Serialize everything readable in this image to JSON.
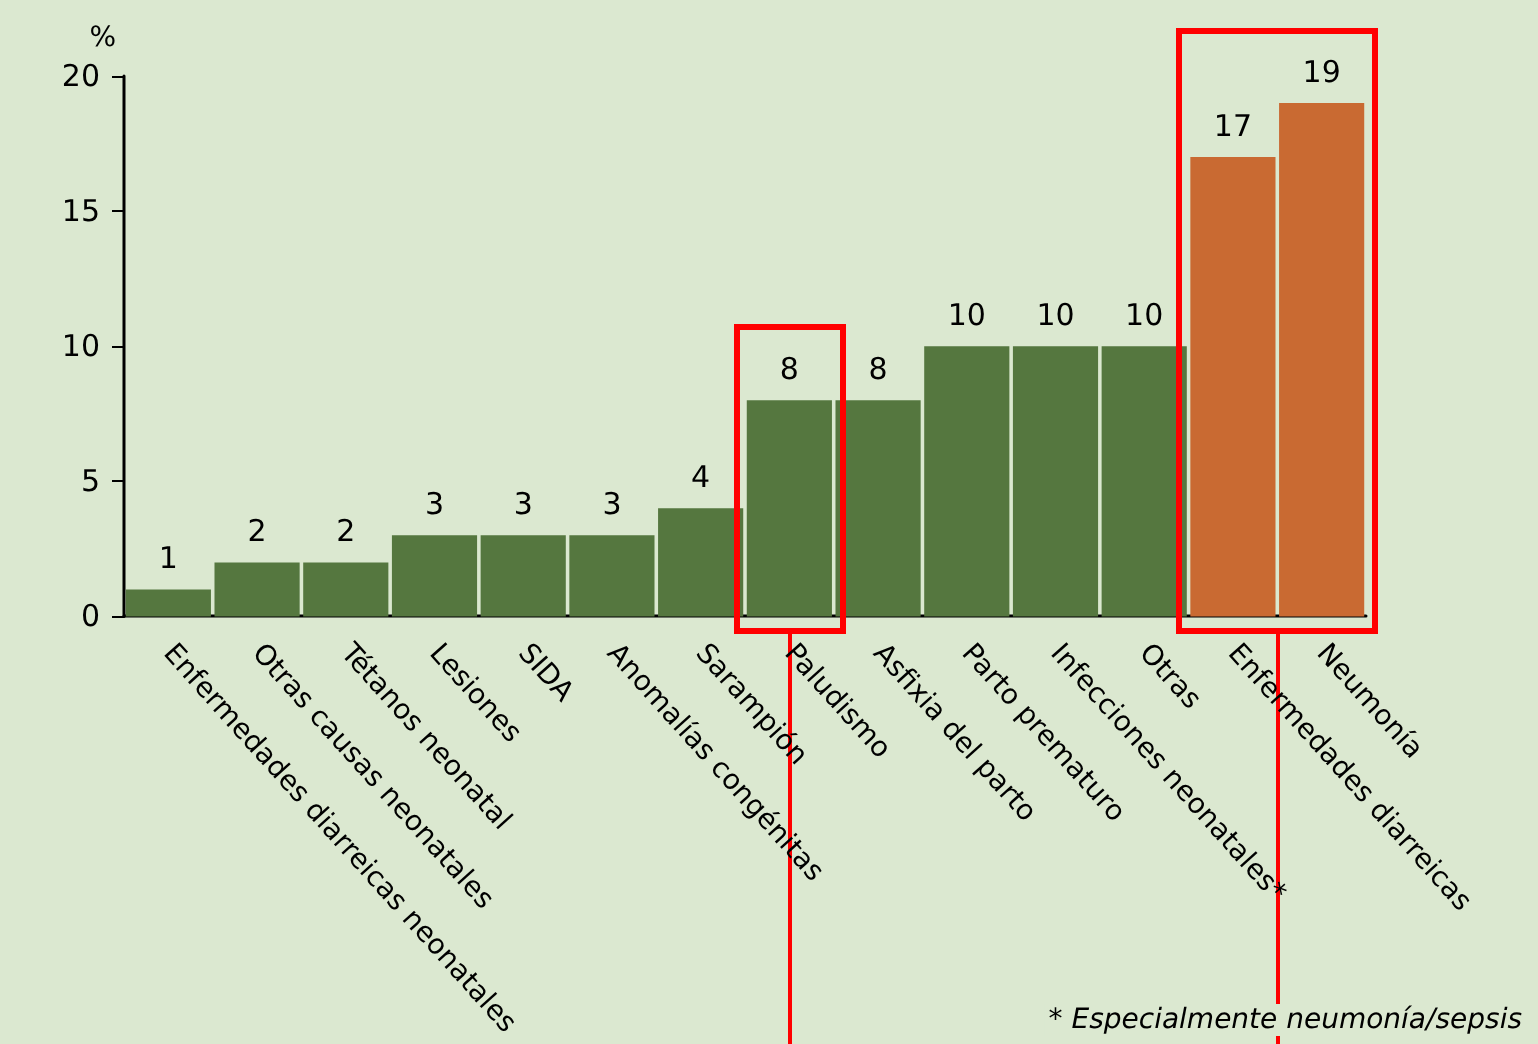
{
  "chart_data": {
    "type": "bar",
    "ylabel": "%",
    "categories": [
      "Enfermedades diarreicas neonatales",
      "Otras causas neonatales",
      "Tétanos neonatal",
      "Lesiones",
      "SIDA",
      "Anomalías congénitas",
      "Sarampión",
      "Paludismo",
      "Asfixia del parto",
      "Parto prematuro",
      "Infecciones neonatales*",
      "Otras",
      "Enfermedades diarreicas",
      "Neumonía"
    ],
    "values": [
      1,
      2,
      2,
      3,
      3,
      3,
      4,
      8,
      8,
      10,
      10,
      10,
      17,
      19
    ],
    "colors": [
      "#55773f",
      "#55773f",
      "#55773f",
      "#55773f",
      "#55773f",
      "#55773f",
      "#55773f",
      "#55773f",
      "#55773f",
      "#55773f",
      "#55773f",
      "#55773f",
      "#c96a32",
      "#c96a32"
    ],
    "ylim": [
      0,
      20
    ],
    "yticks": [
      0,
      5,
      10,
      15,
      20
    ],
    "data_labels": true,
    "annotations": [
      "* Especialmente neumonía/sepsis"
    ]
  }
}
